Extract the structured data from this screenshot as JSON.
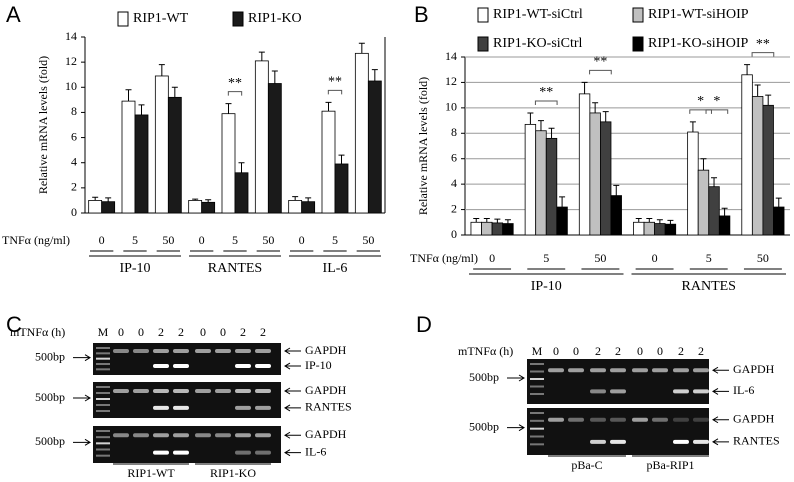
{
  "chart_data": [
    {
      "type": "bar",
      "panel": "A",
      "ylabel": "Relative mRNA levels (fold)",
      "xlabel": "TNFα (ng/ml)",
      "categories": [
        "0",
        "5",
        "50",
        "0",
        "5",
        "50",
        "0",
        "5",
        "50"
      ],
      "groups": [
        "IP-10",
        "RANTES",
        "IL-6"
      ],
      "ylim": [
        0,
        14
      ],
      "yticks": [
        0,
        2,
        4,
        6,
        8,
        10,
        12,
        14
      ],
      "grid": false,
      "series": [
        {
          "name": "RIP1-WT",
          "color": "#ffffff",
          "values": [
            1,
            8.9,
            10.9,
            1,
            7.9,
            12.1,
            1,
            8.1,
            12.7
          ],
          "errors": [
            0.25,
            0.9,
            0.9,
            0.1,
            0.8,
            0.7,
            0.3,
            0.7,
            0.8
          ]
        },
        {
          "name": "RIP1-KO",
          "color": "#1a1a1a",
          "values": [
            0.9,
            7.8,
            9.2,
            0.85,
            3.2,
            10.3,
            0.9,
            3.9,
            10.5
          ],
          "errors": [
            0.3,
            0.8,
            0.8,
            0.2,
            0.8,
            1.0,
            0.3,
            0.7,
            0.9
          ]
        }
      ],
      "significance": [
        [],
        [],
        [],
        [],
        [
          "**"
        ],
        [],
        [],
        [
          "**"
        ],
        []
      ]
    },
    {
      "type": "bar",
      "panel": "B",
      "ylabel": "Relative mRNA levels (fold)",
      "xlabel": "TNFα (ng/ml)",
      "categories": [
        "0",
        "5",
        "50",
        "0",
        "5",
        "50"
      ],
      "groups": [
        "IP-10",
        "RANTES"
      ],
      "ylim": [
        0,
        14
      ],
      "yticks": [
        0,
        2,
        4,
        6,
        8,
        10,
        12,
        14
      ],
      "grid": true,
      "series": [
        {
          "name": "RIP1-WT-siCtrl",
          "color": "#ffffff",
          "values": [
            1,
            8.7,
            11.1,
            1,
            8.1,
            12.6
          ],
          "errors": [
            0.3,
            0.9,
            0.9,
            0.3,
            0.8,
            0.8
          ]
        },
        {
          "name": "RIP1-WT-siHOIP",
          "color": "#c0c0c0",
          "values": [
            1,
            8.2,
            9.6,
            1,
            5.1,
            10.9
          ],
          "errors": [
            0.3,
            0.8,
            0.8,
            0.3,
            0.9,
            0.9
          ]
        },
        {
          "name": "RIP1-KO-siCtrl",
          "color": "#404040",
          "values": [
            0.95,
            7.6,
            8.9,
            0.9,
            3.8,
            10.2
          ],
          "errors": [
            0.3,
            0.8,
            0.8,
            0.3,
            0.7,
            0.8
          ]
        },
        {
          "name": "RIP1-KO-siHOIP",
          "color": "#000000",
          "values": [
            0.9,
            2.2,
            3.1,
            0.85,
            1.5,
            2.2
          ],
          "errors": [
            0.3,
            0.8,
            0.8,
            0.3,
            0.6,
            0.7
          ]
        }
      ],
      "significance": [
        [],
        [
          "**"
        ],
        [
          "**"
        ],
        [],
        [
          "*",
          "*"
        ],
        [
          "**"
        ]
      ]
    }
  ],
  "gels": [
    {
      "panel": "C",
      "time_label": "mTNFα (h)",
      "marker": "M",
      "lanes": [
        "0",
        "0",
        "2",
        "2",
        "0",
        "0",
        "2",
        "2"
      ],
      "blots": [
        {
          "size": "500bp",
          "bands": [
            "GAPDH",
            "IP-10"
          ]
        },
        {
          "size": "500bp",
          "bands": [
            "GAPDH",
            "RANTES"
          ]
        },
        {
          "size": "500bp",
          "bands": [
            "GAPDH",
            "IL-6"
          ]
        }
      ],
      "groups": [
        "RIP1-WT",
        "RIP1-KO"
      ]
    },
    {
      "panel": "D",
      "time_label": "mTNFα (h)",
      "marker": "M",
      "lanes": [
        "0",
        "0",
        "2",
        "2",
        "0",
        "0",
        "2",
        "2"
      ],
      "blots": [
        {
          "size": "500bp",
          "bands": [
            "GAPDH",
            "IL-6"
          ]
        },
        {
          "size": "500bp",
          "bands": [
            "GAPDH",
            "RANTES"
          ]
        }
      ],
      "groups": [
        "pBa-C",
        "pBa-RIP1"
      ]
    }
  ]
}
